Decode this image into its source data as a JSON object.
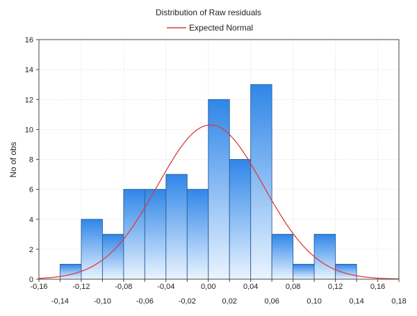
{
  "chart_data": {
    "type": "bar",
    "title": "Distribution of Raw residuals",
    "xlabel": "",
    "ylabel": "No of obs",
    "legend": {
      "placement": "top",
      "entries": [
        "Expected Normal"
      ]
    },
    "grid": true,
    "xlim": [
      -0.16,
      0.18
    ],
    "ylim": [
      0,
      16
    ],
    "x_ticks_top_row": [
      "-0,16",
      "-0,12",
      "-0,08",
      "-0,04",
      "0,00",
      "0,04",
      "0,08",
      "0,12",
      "0,16"
    ],
    "x_ticks_bottom_row": [
      "-0,14",
      "-0,10",
      "-0,06",
      "-0,02",
      "0,02",
      "0,06",
      "0,10",
      "0,14",
      "0,18"
    ],
    "y_ticks": [
      "0",
      "2",
      "4",
      "6",
      "8",
      "10",
      "12",
      "14",
      "16"
    ],
    "bins": [
      {
        "from": -0.14,
        "to": -0.12,
        "count": 1
      },
      {
        "from": -0.12,
        "to": -0.1,
        "count": 4
      },
      {
        "from": -0.1,
        "to": -0.08,
        "count": 3
      },
      {
        "from": -0.08,
        "to": -0.06,
        "count": 6
      },
      {
        "from": -0.06,
        "to": -0.04,
        "count": 6
      },
      {
        "from": -0.04,
        "to": -0.02,
        "count": 7
      },
      {
        "from": -0.02,
        "to": 0.0,
        "count": 6
      },
      {
        "from": 0.0,
        "to": 0.02,
        "count": 12
      },
      {
        "from": 0.02,
        "to": 0.04,
        "count": 8
      },
      {
        "from": 0.04,
        "to": 0.06,
        "count": 13
      },
      {
        "from": 0.06,
        "to": 0.08,
        "count": 3
      },
      {
        "from": 0.08,
        "to": 0.1,
        "count": 1
      },
      {
        "from": 0.1,
        "to": 0.12,
        "count": 3
      },
      {
        "from": 0.12,
        "to": 0.14,
        "count": 1
      }
    ],
    "normal_curve": {
      "name": "Expected Normal",
      "mean": 0.002,
      "sd": 0.05,
      "peak": 10.3,
      "color": "#dd3b3b"
    },
    "bar_color_top": "#2f86e8",
    "bar_color_bottom": "#eaf4ff",
    "bar_stroke": "#2a5f9a"
  }
}
